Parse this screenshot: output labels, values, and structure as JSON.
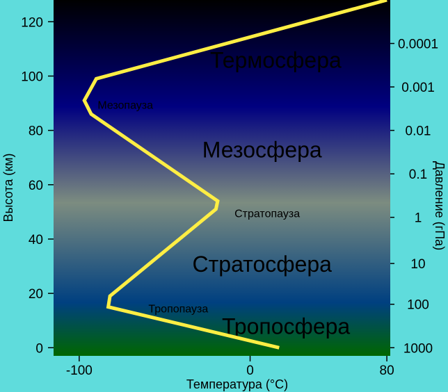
{
  "chart_data": {
    "type": "line",
    "title": "",
    "xlabel": "Температура (°C)",
    "ylabel": "Высота (км)",
    "y2label": "Давление (гПа)",
    "xlim": [
      -115,
      82
    ],
    "ylim": [
      -3,
      128
    ],
    "xticks": [
      {
        "value": -100,
        "label": "-100"
      },
      {
        "value": 0,
        "label": "0"
      },
      {
        "value": 80,
        "label": "80"
      }
    ],
    "yticks": [
      {
        "value": 0,
        "label": "0"
      },
      {
        "value": 20,
        "label": "20"
      },
      {
        "value": 40,
        "label": "40"
      },
      {
        "value": 60,
        "label": "60"
      },
      {
        "value": 80,
        "label": "80"
      },
      {
        "value": 100,
        "label": "100"
      },
      {
        "value": 120,
        "label": "120"
      }
    ],
    "pressure_ticks": [
      {
        "height": 0,
        "label": "1000"
      },
      {
        "height": 16,
        "label": "100"
      },
      {
        "height": 31,
        "label": "10"
      },
      {
        "height": 48,
        "label": "1"
      },
      {
        "height": 64,
        "label": "0.1"
      },
      {
        "height": 80,
        "label": "0.01"
      },
      {
        "height": 96,
        "label": "0.001"
      },
      {
        "height": 112,
        "label": "0.0001"
      }
    ],
    "series": [
      {
        "color": "#ffee44",
        "x": [
          17,
          -83,
          -82,
          -20,
          -19,
          -93,
          -97,
          -90,
          80
        ],
        "y": [
          0,
          15,
          19,
          51,
          54,
          86,
          91,
          99,
          128
        ]
      }
    ],
    "layer_labels": [
      {
        "text": "Термосфера",
        "x": 15,
        "y": 103
      },
      {
        "text": "Мезосфера",
        "x": 7,
        "y": 70
      },
      {
        "text": "Стратосфера",
        "x": 7,
        "y": 28
      },
      {
        "text": "Тропосфера",
        "x": 21,
        "y": 5
      }
    ],
    "pause_labels": [
      {
        "text": "Мезопауза",
        "x": -73,
        "y": 88
      },
      {
        "text": "Стратопауза",
        "x": 10,
        "y": 48
      },
      {
        "text": "Тропопауза",
        "x": -42,
        "y": 13
      }
    ],
    "background_gradient": [
      "#000000",
      "#000080",
      "#7c8c80",
      "#004080",
      "#006600"
    ],
    "axis_color": "#000000"
  }
}
